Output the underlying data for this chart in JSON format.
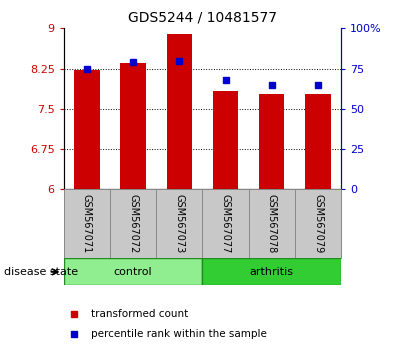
{
  "title": "GDS5244 / 10481577",
  "samples": [
    "GSM567071",
    "GSM567072",
    "GSM567073",
    "GSM567077",
    "GSM567078",
    "GSM567079"
  ],
  "red_values": [
    8.22,
    8.35,
    8.9,
    7.83,
    7.78,
    7.78
  ],
  "blue_values": [
    75,
    79,
    80,
    68,
    65,
    65
  ],
  "ylim_left": [
    6,
    9
  ],
  "ylim_right": [
    0,
    100
  ],
  "yticks_left": [
    6,
    6.75,
    7.5,
    8.25,
    9
  ],
  "yticks_right": [
    0,
    25,
    50,
    75,
    100
  ],
  "ytick_labels_right": [
    "0",
    "25",
    "50",
    "75",
    "100%"
  ],
  "groups": [
    {
      "label": "control",
      "indices": [
        0,
        1,
        2
      ],
      "color": "#90ee90"
    },
    {
      "label": "arthritis",
      "indices": [
        3,
        4,
        5
      ],
      "color": "#32cd32"
    }
  ],
  "bar_color": "#cc0000",
  "dot_color": "#0000cc",
  "bar_width": 0.55,
  "baseline": 6,
  "bg_color": "#c8c8c8",
  "plot_bg": "#ffffff",
  "left_label_color": "#cc0000",
  "right_label_color": "#0000cc",
  "disease_state_label": "disease state",
  "legend_red": "transformed count",
  "legend_blue": "percentile rank within the sample"
}
